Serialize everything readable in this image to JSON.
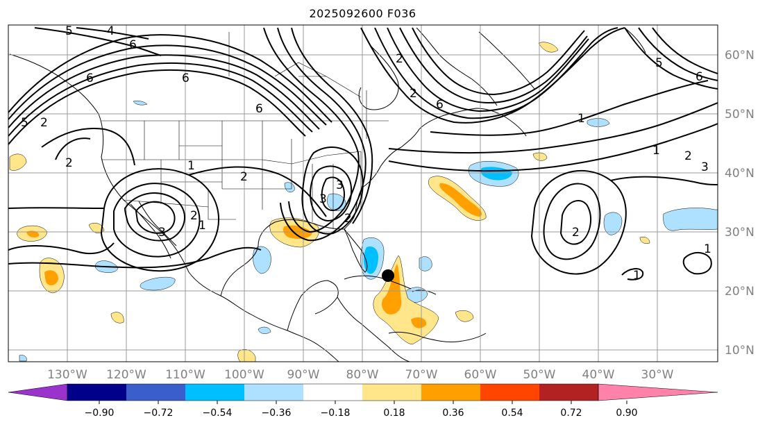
{
  "title": "2025092600 F036",
  "lon_labels": [
    "130°W",
    "120°W",
    "110°W",
    "100°W",
    "90°W",
    "80°W",
    "70°W",
    "60°W",
    "50°W",
    "40°W",
    "30°W"
  ],
  "lat_labels": [
    "10°N",
    "20°N",
    "30°N",
    "40°N",
    "50°N",
    "60°N"
  ],
  "colorbar": {
    "ticks": [
      "−0.90",
      "−0.72",
      "−0.54",
      "−0.36",
      "−0.18",
      "0.18",
      "0.36",
      "0.54",
      "0.72",
      "0.90"
    ],
    "colors": [
      "#9933cc",
      "#00008b",
      "#3a5fcd",
      "#00bfff",
      "#aee0ff",
      "#ffffff",
      "#ffe68a",
      "#ff9f00",
      "#ff4500",
      "#b22222",
      "#ff82ab"
    ]
  },
  "colors": {
    "positive_light": "#ffe68a",
    "positive_mid": "#ff9f00",
    "positive_strong": "#ff4500",
    "negative_light": "#aee0ff",
    "negative_mid": "#00bfff",
    "contour": "#000000",
    "grid": "#9a9a9a",
    "label": "#808080"
  },
  "contour_labels": [
    "4",
    "5",
    "6",
    "6",
    "6",
    "5",
    "2",
    "1",
    "2",
    "3",
    "2",
    "3",
    "3",
    "2",
    "1",
    "2",
    "1",
    "2",
    "3",
    "6",
    "5",
    "1",
    "1",
    "2",
    "2",
    "6",
    "6",
    "1",
    "2"
  ],
  "markers": [
    "storm-center-dot"
  ]
}
